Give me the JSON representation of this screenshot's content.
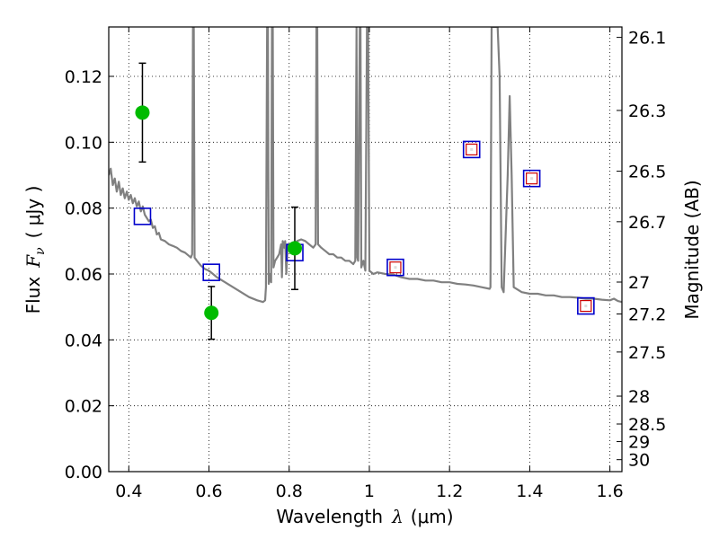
{
  "chart_data": {
    "type": "scatter",
    "xlabel_text": "Wavelength",
    "xlabel_symbol": "λ",
    "xlabel_unit": "(μm)",
    "ylabel_text": "Flux",
    "ylabel_symbol": "F",
    "ylabel_subscript": "ν",
    "ylabel_unit": "( μJy )",
    "y2label": "Magnitude (AB)",
    "xlim": [
      0.35,
      1.63
    ],
    "ylim": [
      0.0,
      0.135
    ],
    "grid": true,
    "x_ticks": [
      {
        "value": 0.4,
        "label": "0.4"
      },
      {
        "value": 0.6,
        "label": "0.6"
      },
      {
        "value": 0.8,
        "label": "0.8"
      },
      {
        "value": 1.0,
        "label": "1"
      },
      {
        "value": 1.2,
        "label": "1.2"
      },
      {
        "value": 1.4,
        "label": "1.4"
      },
      {
        "value": 1.6,
        "label": "1.6"
      }
    ],
    "y_ticks": [
      {
        "value": 0.0,
        "label": "0.00"
      },
      {
        "value": 0.02,
        "label": "0.02"
      },
      {
        "value": 0.04,
        "label": "0.04"
      },
      {
        "value": 0.06,
        "label": "0.06"
      },
      {
        "value": 0.08,
        "label": "0.08"
      },
      {
        "value": 0.1,
        "label": "0.10"
      },
      {
        "value": 0.12,
        "label": "0.12"
      }
    ],
    "y2_ticks": [
      {
        "mag": 26.1,
        "label": "26.1"
      },
      {
        "mag": 26.3,
        "label": "26.3"
      },
      {
        "mag": 26.5,
        "label": "26.5"
      },
      {
        "mag": 26.7,
        "label": "26.7"
      },
      {
        "mag": 27,
        "label": "27"
      },
      {
        "mag": 27.2,
        "label": "27.2"
      },
      {
        "mag": 27.5,
        "label": "27.5"
      },
      {
        "mag": 28,
        "label": "28"
      },
      {
        "mag": 28.5,
        "label": "28.5"
      },
      {
        "mag": 29,
        "label": "29"
      },
      {
        "mag": 30,
        "label": "30"
      }
    ],
    "series": [
      {
        "name": "model_sed",
        "kind": "line",
        "color": "#808080",
        "points": [
          [
            0.35,
            0.09
          ],
          [
            0.355,
            0.092
          ],
          [
            0.36,
            0.087
          ],
          [
            0.365,
            0.089
          ],
          [
            0.37,
            0.085
          ],
          [
            0.375,
            0.088
          ],
          [
            0.38,
            0.084
          ],
          [
            0.385,
            0.086
          ],
          [
            0.39,
            0.083
          ],
          [
            0.395,
            0.085
          ],
          [
            0.4,
            0.0825
          ],
          [
            0.405,
            0.084
          ],
          [
            0.41,
            0.0815
          ],
          [
            0.415,
            0.083
          ],
          [
            0.42,
            0.0805
          ],
          [
            0.425,
            0.082
          ],
          [
            0.43,
            0.079
          ],
          [
            0.435,
            0.0805
          ],
          [
            0.44,
            0.078
          ],
          [
            0.445,
            0.077
          ],
          [
            0.45,
            0.076
          ],
          [
            0.455,
            0.0765
          ],
          [
            0.46,
            0.074
          ],
          [
            0.465,
            0.0745
          ],
          [
            0.47,
            0.072
          ],
          [
            0.475,
            0.0725
          ],
          [
            0.48,
            0.0705
          ],
          [
            0.49,
            0.07
          ],
          [
            0.5,
            0.069
          ],
          [
            0.51,
            0.0685
          ],
          [
            0.52,
            0.068
          ],
          [
            0.53,
            0.067
          ],
          [
            0.54,
            0.0665
          ],
          [
            0.55,
            0.0655
          ],
          [
            0.555,
            0.065
          ],
          [
            0.558,
            0.066
          ],
          [
            0.56,
            0.135
          ],
          [
            0.562,
            0.135
          ],
          [
            0.564,
            0.065
          ],
          [
            0.57,
            0.064
          ],
          [
            0.58,
            0.0625
          ],
          [
            0.59,
            0.0615
          ],
          [
            0.6,
            0.061
          ],
          [
            0.61,
            0.06
          ],
          [
            0.62,
            0.059
          ],
          [
            0.64,
            0.0575
          ],
          [
            0.66,
            0.056
          ],
          [
            0.68,
            0.0545
          ],
          [
            0.7,
            0.053
          ],
          [
            0.72,
            0.052
          ],
          [
            0.735,
            0.0515
          ],
          [
            0.74,
            0.052
          ],
          [
            0.742,
            0.056
          ],
          [
            0.745,
            0.135
          ],
          [
            0.747,
            0.135
          ],
          [
            0.749,
            0.057
          ],
          [
            0.752,
            0.06
          ],
          [
            0.755,
            0.0575
          ],
          [
            0.757,
            0.135
          ],
          [
            0.759,
            0.135
          ],
          [
            0.761,
            0.062
          ],
          [
            0.765,
            0.064
          ],
          [
            0.77,
            0.065
          ],
          [
            0.775,
            0.066
          ],
          [
            0.78,
            0.069
          ],
          [
            0.782,
            0.059
          ],
          [
            0.784,
            0.07
          ],
          [
            0.788,
            0.068
          ],
          [
            0.79,
            0.07
          ],
          [
            0.793,
            0.06
          ],
          [
            0.796,
            0.069
          ],
          [
            0.8,
            0.0685
          ],
          [
            0.81,
            0.069
          ],
          [
            0.82,
            0.07
          ],
          [
            0.83,
            0.0705
          ],
          [
            0.84,
            0.07
          ],
          [
            0.85,
            0.069
          ],
          [
            0.86,
            0.068
          ],
          [
            0.866,
            0.069
          ],
          [
            0.868,
            0.135
          ],
          [
            0.87,
            0.135
          ],
          [
            0.872,
            0.069
          ],
          [
            0.88,
            0.068
          ],
          [
            0.89,
            0.067
          ],
          [
            0.9,
            0.066
          ],
          [
            0.91,
            0.066
          ],
          [
            0.92,
            0.065
          ],
          [
            0.93,
            0.065
          ],
          [
            0.94,
            0.064
          ],
          [
            0.95,
            0.064
          ],
          [
            0.96,
            0.063
          ],
          [
            0.965,
            0.064
          ],
          [
            0.968,
            0.135
          ],
          [
            0.97,
            0.065
          ],
          [
            0.972,
            0.064
          ],
          [
            0.976,
            0.135
          ],
          [
            0.978,
            0.135
          ],
          [
            0.98,
            0.062
          ],
          [
            0.985,
            0.064
          ],
          [
            0.99,
            0.061
          ],
          [
            0.994,
            0.135
          ],
          [
            0.997,
            0.135
          ],
          [
            1.0,
            0.061
          ],
          [
            1.01,
            0.06
          ],
          [
            1.02,
            0.0605
          ],
          [
            1.04,
            0.06
          ],
          [
            1.06,
            0.0598
          ],
          [
            1.08,
            0.059
          ],
          [
            1.1,
            0.0585
          ],
          [
            1.12,
            0.0585
          ],
          [
            1.14,
            0.058
          ],
          [
            1.16,
            0.058
          ],
          [
            1.18,
            0.0575
          ],
          [
            1.2,
            0.0575
          ],
          [
            1.22,
            0.057
          ],
          [
            1.24,
            0.0568
          ],
          [
            1.26,
            0.0565
          ],
          [
            1.28,
            0.056
          ],
          [
            1.3,
            0.0555
          ],
          [
            1.302,
            0.056
          ],
          [
            1.305,
            0.135
          ],
          [
            1.32,
            0.135
          ],
          [
            1.325,
            0.12
          ],
          [
            1.33,
            0.056
          ],
          [
            1.335,
            0.0545
          ],
          [
            1.345,
            0.09
          ],
          [
            1.35,
            0.114
          ],
          [
            1.355,
            0.09
          ],
          [
            1.36,
            0.056
          ],
          [
            1.38,
            0.0545
          ],
          [
            1.4,
            0.054
          ],
          [
            1.42,
            0.054
          ],
          [
            1.44,
            0.0535
          ],
          [
            1.46,
            0.0535
          ],
          [
            1.48,
            0.053
          ],
          [
            1.5,
            0.053
          ],
          [
            1.52,
            0.0528
          ],
          [
            1.54,
            0.0525
          ],
          [
            1.56,
            0.0525
          ],
          [
            1.58,
            0.0522
          ],
          [
            1.6,
            0.052
          ],
          [
            1.61,
            0.0525
          ],
          [
            1.62,
            0.0518
          ],
          [
            1.63,
            0.0515
          ]
        ]
      },
      {
        "name": "observed",
        "kind": "scatter_errorbar",
        "color": "#00bb00",
        "points": [
          {
            "x": 0.434,
            "y": 0.109,
            "yerr": 0.015
          },
          {
            "x": 0.606,
            "y": 0.0482,
            "yerr": 0.008
          },
          {
            "x": 0.814,
            "y": 0.0678,
            "yerr": 0.0125
          }
        ]
      },
      {
        "name": "model_photometry",
        "kind": "open_square",
        "color": "#0000cc",
        "points": [
          {
            "x": 0.434,
            "y": 0.0775
          },
          {
            "x": 0.606,
            "y": 0.0605
          },
          {
            "x": 0.814,
            "y": 0.0665
          },
          {
            "x": 1.065,
            "y": 0.062
          },
          {
            "x": 1.255,
            "y": 0.0978
          },
          {
            "x": 1.405,
            "y": 0.089
          },
          {
            "x": 1.54,
            "y": 0.0503
          }
        ]
      },
      {
        "name": "upper_limits",
        "kind": "small_square",
        "color": "#cc0000",
        "points": [
          {
            "x": 1.065,
            "y": 0.062
          },
          {
            "x": 1.255,
            "y": 0.0978
          },
          {
            "x": 1.405,
            "y": 0.089
          },
          {
            "x": 1.54,
            "y": 0.0503
          }
        ]
      }
    ]
  }
}
